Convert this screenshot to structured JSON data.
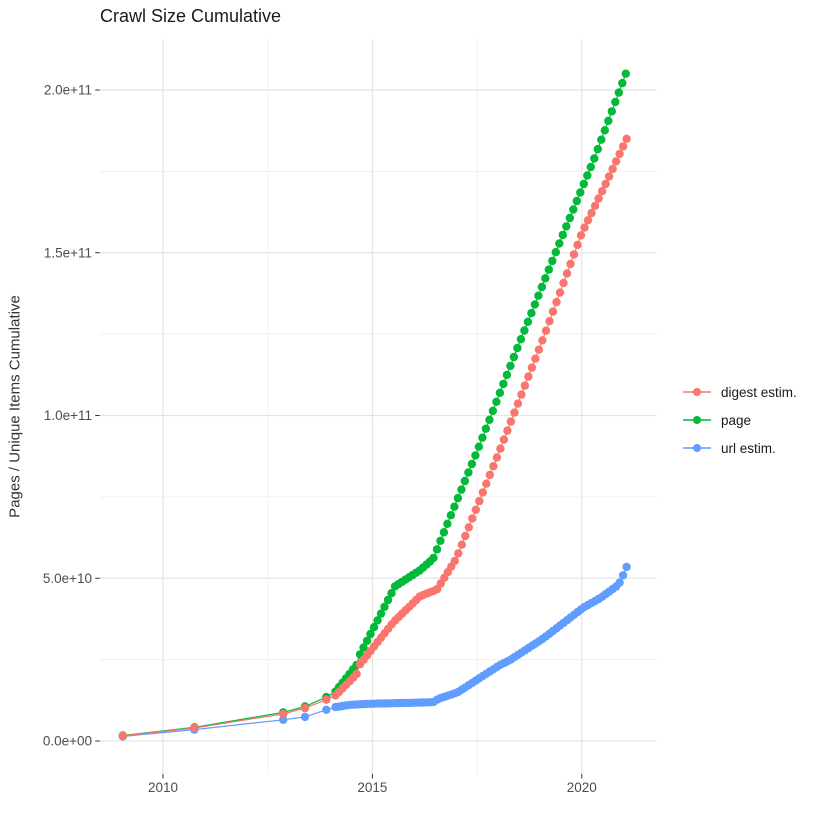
{
  "title": "Crawl Size Cumulative",
  "y_axis_title": "Pages / Unique Items Cumulative",
  "x_axis": {
    "tick_labels": [
      "2010",
      "2015",
      "2020"
    ],
    "tick_values": [
      2010,
      2015,
      2020
    ],
    "minor_values": [
      2012.5,
      2017.5
    ],
    "domain": [
      2008.44,
      2021.67
    ]
  },
  "y_axis": {
    "tick_labels": [
      "0.0e+00",
      "5.0e+10",
      "1.0e+11",
      "1.5e+11",
      "2.0e+11"
    ],
    "tick_values_e9": [
      0,
      50,
      100,
      150,
      200
    ],
    "minor_values_e9": [
      25,
      75,
      125,
      175
    ],
    "domain_e9": [
      -10.2,
      215.7
    ]
  },
  "legend": {
    "position": "right",
    "entries": [
      "digest estim.",
      "page",
      "url estim."
    ]
  },
  "style": {
    "grid_major": "#e4e4e4",
    "grid_minor": "#f1f1f1",
    "tick_mark": "#333333",
    "tick_text": "#4d4d4d",
    "title_text": "#1a1a1a",
    "point_radius": 4.2
  },
  "chart_data": {
    "type": "line",
    "x_unit": "decimal year",
    "y_unit": "count (listed value x 1e9)",
    "title": "Crawl Size Cumulative",
    "xlabel": "",
    "ylabel": "Pages / Unique Items Cumulative",
    "xlim": [
      2008.44,
      2021.67
    ],
    "ylim_e9": [
      -10.2,
      215.7
    ],
    "grid": true,
    "legend_position": "right-middle",
    "sampling_note": "points are crawl snapshots: sparse early points, then ~monthly points interpolated along anchors",
    "series": [
      {
        "name": "digest estim.",
        "color": "#F8766D",
        "early_points": [
          [
            2009.04,
            1.6
          ],
          [
            2010.75,
            4.0
          ],
          [
            2012.87,
            8.3
          ],
          [
            2013.39,
            10.1
          ],
          [
            2013.9,
            12.7
          ]
        ],
        "anchors": [
          [
            2014.12,
            14.0
          ],
          [
            2014.62,
            20.5
          ],
          [
            2014.7,
            23.5
          ],
          [
            2015.5,
            36.5
          ],
          [
            2016.14,
            44.5
          ],
          [
            2016.54,
            46.5
          ],
          [
            2017.0,
            56.0
          ],
          [
            2018.0,
            88.0
          ],
          [
            2019.0,
            121.0
          ],
          [
            2020.0,
            156.0
          ],
          [
            2020.6,
            172.0
          ],
          [
            2021.07,
            185.0
          ]
        ],
        "monthly_range": [
          2014.12,
          2021.07
        ]
      },
      {
        "name": "page",
        "color": "#00BA38",
        "early_points": [
          [
            2009.04,
            1.7
          ],
          [
            2010.75,
            4.2
          ],
          [
            2012.87,
            8.8
          ],
          [
            2013.39,
            10.6
          ],
          [
            2013.9,
            13.5
          ]
        ],
        "anchors": [
          [
            2014.12,
            15.2
          ],
          [
            2014.62,
            23.3
          ],
          [
            2014.7,
            26.5
          ],
          [
            2015.54,
            47.5
          ],
          [
            2016.14,
            52.5
          ],
          [
            2016.45,
            56.0
          ],
          [
            2017.5,
            89.0
          ],
          [
            2018.5,
            122.0
          ],
          [
            2019.5,
            154.0
          ],
          [
            2020.3,
            179.0
          ],
          [
            2021.05,
            205.0
          ]
        ],
        "monthly_range": [
          2014.12,
          2021.05
        ]
      },
      {
        "name": "url estim.",
        "color": "#619CFF",
        "early_points": [
          [
            2009.04,
            1.4
          ],
          [
            2010.75,
            3.5
          ],
          [
            2012.87,
            6.5
          ],
          [
            2013.39,
            7.4
          ],
          [
            2013.9,
            9.6
          ]
        ],
        "anchors": [
          [
            2014.12,
            10.4
          ],
          [
            2014.45,
            11.1
          ],
          [
            2014.87,
            11.4
          ],
          [
            2015.5,
            11.6
          ],
          [
            2016.14,
            11.8
          ],
          [
            2016.45,
            11.9
          ],
          [
            2016.58,
            13.0
          ],
          [
            2016.87,
            14.2
          ],
          [
            2017.04,
            15.0
          ],
          [
            2018.04,
            23.3
          ],
          [
            2018.29,
            24.9
          ],
          [
            2019.08,
            31.5
          ],
          [
            2020.04,
            41.0
          ],
          [
            2020.45,
            44.0
          ],
          [
            2020.74,
            46.7
          ],
          [
            2020.87,
            47.9
          ],
          [
            2020.95,
            49.8
          ],
          [
            2021.07,
            53.5
          ]
        ],
        "monthly_range": [
          2014.12,
          2021.07
        ]
      }
    ],
    "draw_order": [
      "url estim.",
      "page",
      "digest estim."
    ]
  }
}
